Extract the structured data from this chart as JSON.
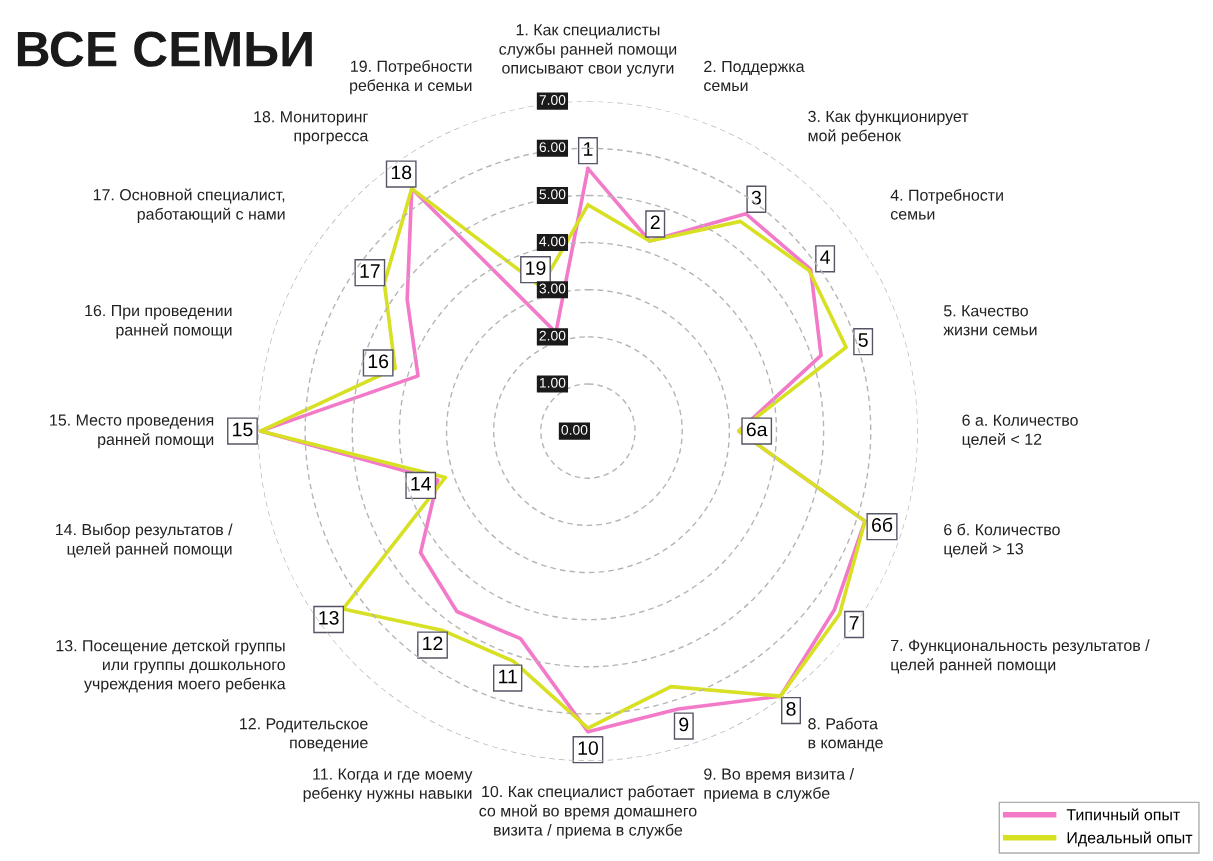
{
  "chart_data": {
    "type": "radar",
    "title": "ВСЕ СЕМЬИ",
    "categories": [
      "1",
      "2",
      "3",
      "4",
      "5",
      "6a",
      "6б",
      "7",
      "8",
      "9",
      "10",
      "11",
      "12",
      "13",
      "14",
      "15",
      "16",
      "17",
      "18",
      "19"
    ],
    "series": [
      {
        "name": "Типичный опыт",
        "color": "#f27ac8",
        "values": [
          5.57,
          4.24,
          5.7,
          5.84,
          5.2,
          3.2,
          6.18,
          6.46,
          6.95,
          6.2,
          6.38,
          4.63,
          4.73,
          4.39,
          3.35,
          6.95,
          3.79,
          4.74,
          6.36,
          2.2
        ]
      },
      {
        "name": "Идеальный опыт",
        "color": "#d8e024",
        "values": [
          4.8,
          4.24,
          5.5,
          5.8,
          5.76,
          3.2,
          6.18,
          6.6,
          6.95,
          5.7,
          6.3,
          5.13,
          5.23,
          6.42,
          3.18,
          6.95,
          4.3,
          5.34,
          6.36,
          3.22
        ]
      }
    ],
    "ylim": [
      0,
      7
    ],
    "yticks": [
      {
        "value": 0,
        "label": "0.00"
      },
      {
        "value": 1,
        "label": "1.00"
      },
      {
        "value": 2,
        "label": "2.00"
      },
      {
        "value": 3,
        "label": "3.00"
      },
      {
        "value": 4,
        "label": "4.00"
      },
      {
        "value": 5,
        "label": "5.00"
      },
      {
        "value": 6,
        "label": "6.00"
      },
      {
        "value": 7,
        "label": "7.00"
      }
    ],
    "grid": true,
    "legend": "bottom right",
    "annotations": [
      "1. Как специалисты\nслужбы ранней помощи\nописывают свои услуги",
      "2. Поддержка\nсемьи",
      "3. Как функционирует\nмой ребенок",
      "4. Потребности\nсемьи",
      "5. Качество\nжизни семьи",
      "6 а. Количество\nцелей < 12",
      "6 б. Количество\nцелей > 13",
      "7. Функциональность результатов /\nцелей ранней помощи",
      "8. Работа\nв команде",
      "9. Во время визита /\nприема в службе",
      "10. Как специалист работает\nсо мной во время домашнего\nвизита / приема в службе",
      "11. Когда и где моему\nребенку нужны навыки",
      "12. Родительское\nповедение",
      "13. Посещение детской группы\nили группы дошкольного\nучреждения моего ребенка",
      "14. Выбор результатов /\nцелей ранней помощи",
      "15. Место проведения\nранней помощи",
      "16. При проведении\nранней помощи",
      "17. Основной специалист,\nработающий с нами",
      "18. Мониторинг\nпрогресса",
      "19. Потребности\nребенка и семьи"
    ]
  }
}
